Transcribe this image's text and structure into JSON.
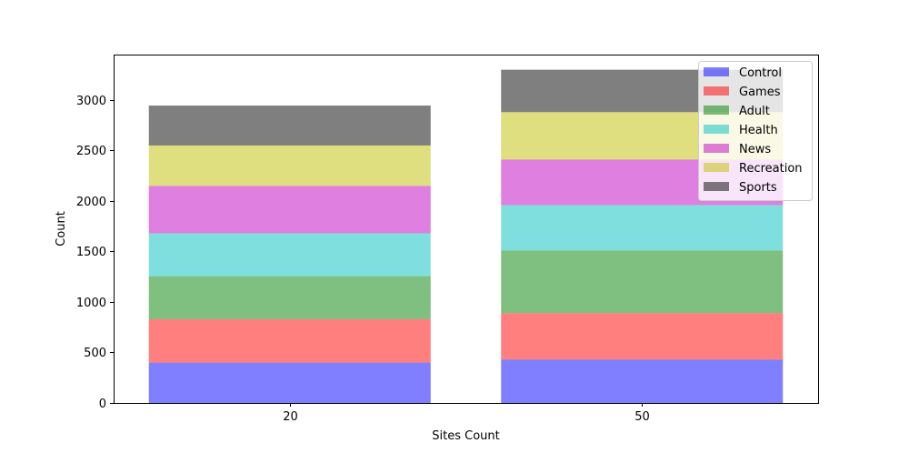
{
  "chart_data": {
    "type": "bar",
    "stacked": true,
    "categories": [
      "20",
      "50"
    ],
    "series": [
      {
        "name": "Control",
        "values": [
          400,
          430
        ],
        "color": "#0000ff"
      },
      {
        "name": "Games",
        "values": [
          430,
          460
        ],
        "color": "#ff0000"
      },
      {
        "name": "Adult",
        "values": [
          425,
          620
        ],
        "color": "#008000"
      },
      {
        "name": "Health",
        "values": [
          425,
          450
        ],
        "color": "#00c0c0"
      },
      {
        "name": "News",
        "values": [
          470,
          450
        ],
        "color": "#c000c0"
      },
      {
        "name": "Recreation",
        "values": [
          400,
          470
        ],
        "color": "#c0c000"
      },
      {
        "name": "Sports",
        "values": [
          395,
          420
        ],
        "color": "#000000"
      }
    ],
    "xlabel": "Sites Count",
    "ylabel": "Count",
    "ylim": [
      0,
      3450
    ],
    "yticks": [
      0,
      500,
      1000,
      1500,
      2000,
      2500,
      3000
    ],
    "bar_opacity": 0.5,
    "legend_position": "upper right",
    "grid": false
  }
}
